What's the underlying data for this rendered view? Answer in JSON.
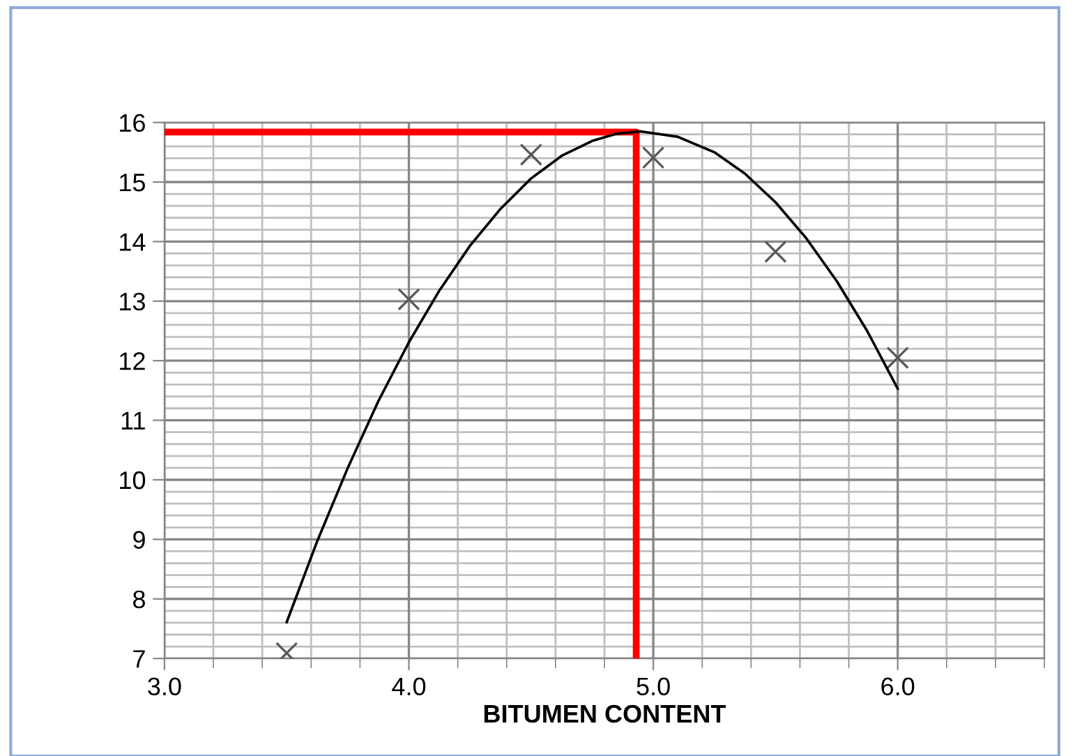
{
  "chart_data": {
    "type": "scatter",
    "xlabel": "BITUMEN CONTENT",
    "xlim": [
      3.0,
      6.6
    ],
    "ylim": [
      7,
      16
    ],
    "xticks": [
      {
        "value": 3.0,
        "label": "3.0"
      },
      {
        "value": 3.2,
        "label": null
      },
      {
        "value": 3.4,
        "label": null
      },
      {
        "value": 3.6,
        "label": null
      },
      {
        "value": 3.8,
        "label": null
      },
      {
        "value": 4.0,
        "label": "4.0"
      },
      {
        "value": 4.2,
        "label": null
      },
      {
        "value": 4.4,
        "label": null
      },
      {
        "value": 4.6,
        "label": null
      },
      {
        "value": 4.8,
        "label": null
      },
      {
        "value": 5.0,
        "label": "5.0"
      },
      {
        "value": 5.2,
        "label": null
      },
      {
        "value": 5.4,
        "label": null
      },
      {
        "value": 5.6,
        "label": null
      },
      {
        "value": 5.8,
        "label": null
      },
      {
        "value": 6.0,
        "label": "6.0"
      },
      {
        "value": 6.2,
        "label": null
      },
      {
        "value": 6.4,
        "label": null
      },
      {
        "value": 6.6,
        "label": null
      }
    ],
    "yticks": [
      7,
      8,
      9,
      10,
      11,
      12,
      13,
      14,
      15,
      16
    ],
    "grid": true,
    "legend": false,
    "series": [
      {
        "marker": "cross",
        "color": "#595959",
        "x": [
          3.5,
          4.0,
          4.5,
          5.0,
          5.5,
          6.0
        ],
        "values": [
          7.09,
          13.03,
          15.46,
          15.41,
          13.83,
          12.05
        ]
      },
      {
        "type": "line",
        "marker": "none",
        "color": "#000000",
        "x": [
          3.5,
          3.625,
          3.75,
          3.875,
          4.0,
          4.125,
          4.25,
          4.375,
          4.5,
          4.625,
          4.75,
          4.85,
          4.95,
          5.1,
          5.25,
          5.375,
          5.5,
          5.625,
          5.75,
          5.875,
          6.0
        ],
        "values": [
          7.61,
          8.97,
          10.2,
          11.32,
          12.31,
          13.18,
          13.93,
          14.55,
          15.06,
          15.44,
          15.69,
          15.81,
          15.85,
          15.76,
          15.5,
          15.14,
          14.66,
          14.06,
          13.34,
          12.5,
          11.53
        ]
      },
      {
        "type": "line",
        "marker": "none",
        "color": "#ff0000",
        "x": [
          3.0,
          4.93,
          4.93
        ],
        "values": [
          15.84,
          15.84,
          7
        ]
      }
    ]
  }
}
